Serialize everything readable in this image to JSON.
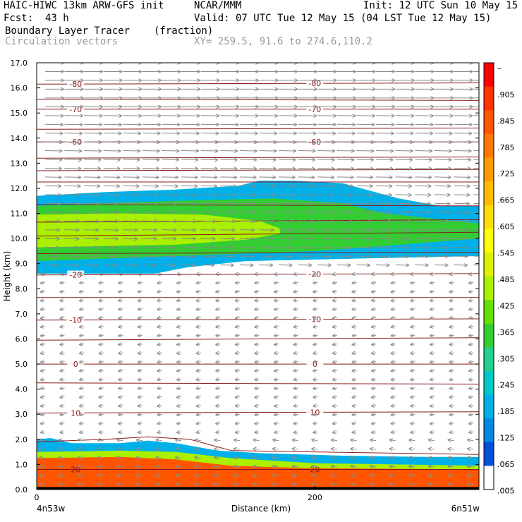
{
  "header": {
    "model": "HAIC-HIWC 13km ARW-GFS init",
    "org": "NCAR/MMM",
    "init": "Init: 12 UTC Sun 10 May 15",
    "fcst_label": "Fcst:",
    "fcst_value": "43 h",
    "valid": "Valid: 07 UTC Tue 12 May 15 (04 LST Tue 12 May 15)",
    "field1_name": "Boundary Layer Tracer",
    "field1_units": "(fraction)",
    "field2_name": "Circulation vectors",
    "cross_section": "XY= 259.5, 91.6 to 274.6,110.2"
  },
  "chart_data": {
    "type": "heatmap",
    "title": "Boundary Layer Tracer (fraction)",
    "xlabel": "Distance (km)",
    "ylabel": "Height (km)",
    "x_range_km": [
      0,
      318
    ],
    "ylim": [
      0,
      17
    ],
    "x_ticks": [
      {
        "value": 0,
        "label": "0"
      },
      {
        "value": 200,
        "label": "200"
      }
    ],
    "x_endpoint_labels": {
      "left": "4n53w",
      "right": "6n51w"
    },
    "y_ticks": [
      {
        "value": 0,
        "label": "0.0"
      },
      {
        "value": 1,
        "label": "1.0"
      },
      {
        "value": 2,
        "label": "2.0"
      },
      {
        "value": 3,
        "label": "3.0"
      },
      {
        "value": 4,
        "label": "4.0"
      },
      {
        "value": 5,
        "label": "5.0"
      },
      {
        "value": 6,
        "label": "6.0"
      },
      {
        "value": 7,
        "label": "7.0"
      },
      {
        "value": 8,
        "label": "8.0"
      },
      {
        "value": 9,
        "label": "9.0"
      },
      {
        "value": 10,
        "label": "10.0"
      },
      {
        "value": 11,
        "label": "11.0"
      },
      {
        "value": 12,
        "label": "12.0"
      },
      {
        "value": 13,
        "label": "13.0"
      },
      {
        "value": 14,
        "label": "14.0"
      },
      {
        "value": 15,
        "label": "15.0"
      },
      {
        "value": 16,
        "label": "16.0"
      },
      {
        "value": 17,
        "label": "17.0"
      }
    ],
    "colorbar": {
      "labels": [
        "–",
        ".905",
        ".845",
        ".785",
        ".725",
        ".665",
        ".605",
        ".545",
        ".485",
        ".425",
        ".365",
        ".305",
        ".245",
        ".185",
        ".125",
        ".065",
        ".005"
      ],
      "colors": [
        "#ff0000",
        "#ff3300",
        "#ff5500",
        "#ff7700",
        "#ff9900",
        "#ffbb00",
        "#ffdd00",
        "#ffff00",
        "#ddf000",
        "#aaf000",
        "#66e000",
        "#33cc33",
        "#22d090",
        "#00c8c8",
        "#00b0e8",
        "#0088e0",
        "#0050d8",
        "#ffffff"
      ]
    },
    "tracer_layers": [
      {
        "name": "upper_plume_edge",
        "value": 0.125,
        "top": [
          [
            0,
            11.7
          ],
          [
            50,
            11.85
          ],
          [
            100,
            11.95
          ],
          [
            145,
            12.1
          ],
          [
            160,
            12.3
          ],
          [
            185,
            12.3
          ],
          [
            220,
            12.2
          ],
          [
            260,
            11.6
          ],
          [
            290,
            11.3
          ],
          [
            318,
            11.3
          ]
        ],
        "bottom": [
          [
            0,
            8.6
          ],
          [
            50,
            8.6
          ],
          [
            85,
            8.6
          ],
          [
            108,
            8.85
          ],
          [
            150,
            9.1
          ],
          [
            230,
            9.2
          ],
          [
            318,
            9.3
          ]
        ]
      },
      {
        "name": "upper_plume_mid",
        "value": 0.305,
        "top": [
          [
            0,
            11.3
          ],
          [
            100,
            11.5
          ],
          [
            170,
            11.6
          ],
          [
            220,
            11.4
          ],
          [
            250,
            11.0
          ],
          [
            318,
            10.6
          ]
        ],
        "bottom": [
          [
            0,
            9.1
          ],
          [
            100,
            9.3
          ],
          [
            200,
            9.5
          ],
          [
            250,
            9.7
          ],
          [
            318,
            10.0
          ]
        ]
      },
      {
        "name": "upper_plume_core",
        "value": 0.425,
        "top": [
          [
            0,
            10.95
          ],
          [
            60,
            11.0
          ],
          [
            120,
            10.95
          ],
          [
            160,
            10.7
          ],
          [
            175,
            10.4
          ]
        ],
        "bottom": [
          [
            175,
            10.2
          ],
          [
            150,
            9.95
          ],
          [
            100,
            9.75
          ],
          [
            50,
            9.7
          ],
          [
            0,
            9.65
          ]
        ]
      },
      {
        "name": "boundary_layer_edge",
        "value": 0.125,
        "top": [
          [
            0,
            2.0
          ],
          [
            10,
            2.05
          ],
          [
            25,
            1.85
          ],
          [
            60,
            1.85
          ],
          [
            80,
            1.95
          ],
          [
            100,
            1.85
          ],
          [
            130,
            1.55
          ],
          [
            160,
            1.45
          ],
          [
            220,
            1.35
          ],
          [
            280,
            1.3
          ],
          [
            318,
            1.3
          ]
        ],
        "bottom": [
          [
            0,
            0
          ]
        ]
      },
      {
        "name": "boundary_layer_mid",
        "value": 0.425,
        "top": [
          [
            0,
            1.5
          ],
          [
            60,
            1.55
          ],
          [
            100,
            1.5
          ],
          [
            140,
            1.25
          ],
          [
            200,
            1.05
          ],
          [
            318,
            0.95
          ]
        ],
        "bottom": [
          [
            0,
            0
          ]
        ]
      },
      {
        "name": "boundary_layer_core",
        "value": 0.905,
        "top": [
          [
            0,
            1.25
          ],
          [
            60,
            1.3
          ],
          [
            100,
            1.2
          ],
          [
            140,
            0.95
          ],
          [
            200,
            0.85
          ],
          [
            318,
            0.8
          ]
        ],
        "bottom": [
          [
            0,
            0
          ]
        ]
      }
    ],
    "isotherms": [
      {
        "value": 20,
        "label": "20",
        "y": [
          [
            0,
            0.8
          ],
          [
            318,
            0.8
          ]
        ]
      },
      {
        "value": 15,
        "label": "",
        "y": [
          [
            0,
            1.9
          ],
          [
            50,
            2.0
          ],
          [
            80,
            2.1
          ],
          [
            110,
            2.0
          ],
          [
            140,
            1.55
          ],
          [
            318,
            1.4
          ]
        ]
      },
      {
        "value": 10,
        "label": "10",
        "y": [
          [
            0,
            3.05
          ],
          [
            318,
            3.1
          ]
        ]
      },
      {
        "value": 5,
        "label": "",
        "y": [
          [
            0,
            4.25
          ],
          [
            318,
            4.2
          ]
        ]
      },
      {
        "value": 0,
        "label": "0",
        "y": [
          [
            0,
            5.0
          ],
          [
            318,
            5.0
          ]
        ]
      },
      {
        "value": -5,
        "label": "",
        "y": [
          [
            0,
            5.95
          ],
          [
            318,
            6.05
          ]
        ]
      },
      {
        "value": -10,
        "label": "-10",
        "y": [
          [
            0,
            6.75
          ],
          [
            318,
            6.8
          ]
        ]
      },
      {
        "value": -15,
        "label": "",
        "y": [
          [
            0,
            7.65
          ],
          [
            318,
            7.65
          ]
        ]
      },
      {
        "value": -20,
        "label": "-20",
        "y": [
          [
            0,
            8.55
          ],
          [
            318,
            8.6
          ]
        ]
      },
      {
        "value": -25,
        "label": "",
        "y": [
          [
            0,
            9.4
          ],
          [
            318,
            9.45
          ]
        ]
      },
      {
        "value": -30,
        "label": "",
        "y": [
          [
            0,
            10.1
          ],
          [
            318,
            10.25
          ]
        ]
      },
      {
        "value": -35,
        "label": "",
        "y": [
          [
            0,
            10.65
          ],
          [
            318,
            10.75
          ]
        ]
      },
      {
        "value": -40,
        "label": "",
        "y": [
          [
            0,
            11.35
          ],
          [
            318,
            11.3
          ]
        ]
      },
      {
        "value": -45,
        "label": "",
        "y": [
          [
            0,
            12.25
          ],
          [
            318,
            12.25
          ]
        ]
      },
      {
        "value": -50,
        "label": "",
        "y": [
          [
            0,
            12.7
          ],
          [
            318,
            12.75
          ]
        ]
      },
      {
        "value": -55,
        "label": "",
        "y": [
          [
            0,
            13.2
          ],
          [
            318,
            13.25
          ]
        ]
      },
      {
        "value": -60,
        "label": "-60",
        "y": [
          [
            0,
            13.85
          ],
          [
            318,
            13.85
          ]
        ]
      },
      {
        "value": -65,
        "label": "",
        "y": [
          [
            0,
            14.35
          ],
          [
            318,
            14.4
          ]
        ]
      },
      {
        "value": -70,
        "label": "-70",
        "y": [
          [
            0,
            15.15
          ],
          [
            318,
            15.15
          ]
        ]
      },
      {
        "value": -75,
        "label": "",
        "y": [
          [
            0,
            15.55
          ],
          [
            318,
            15.5
          ]
        ]
      },
      {
        "value": -80,
        "label": "-80",
        "y": [
          [
            0,
            16.15
          ],
          [
            318,
            16.2
          ]
        ]
      }
    ],
    "wind_vectors": {
      "description": "Circulation vectors: strong eastward flow above ~8.5 km, weak westward flow below",
      "x_spacing_km": 14,
      "y_spacing_km": 0.35
    }
  }
}
